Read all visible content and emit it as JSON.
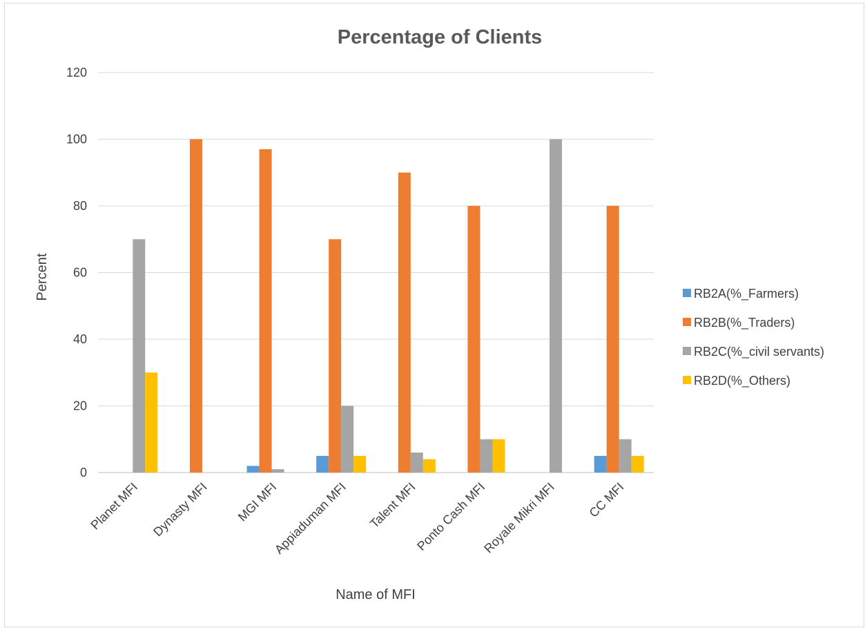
{
  "chart_data": {
    "type": "bar",
    "title": "Percentage of Clients",
    "xlabel": "Name of MFI",
    "ylabel": "Percent",
    "ylim": [
      0,
      120
    ],
    "yticks": [
      0,
      20,
      40,
      60,
      80,
      100,
      120
    ],
    "grid": true,
    "legend_position": "right",
    "categories": [
      "Planet MFI",
      "Dynasty MFI",
      "MGI MFI",
      "Appiaduman MFI",
      "Talent MFI",
      "Ponto Cash MFI",
      "Royale Mikri MFI",
      "CC MFI"
    ],
    "series": [
      {
        "name": "RB2A(%_Farmers)",
        "color": "#5B9BD5",
        "values": [
          0,
          0,
          2,
          5,
          0,
          0,
          0,
          5
        ]
      },
      {
        "name": "RB2B(%_Traders)",
        "color": "#ED7D31",
        "values": [
          0,
          100,
          97,
          70,
          90,
          80,
          0,
          80
        ]
      },
      {
        "name": "RB2C(%_civil servants)",
        "color": "#A5A5A5",
        "values": [
          70,
          0,
          1,
          20,
          6,
          10,
          100,
          10
        ]
      },
      {
        "name": "RB2D(%_Others)",
        "color": "#FFC000",
        "values": [
          30,
          0,
          0,
          5,
          4,
          10,
          0,
          5
        ]
      }
    ]
  }
}
